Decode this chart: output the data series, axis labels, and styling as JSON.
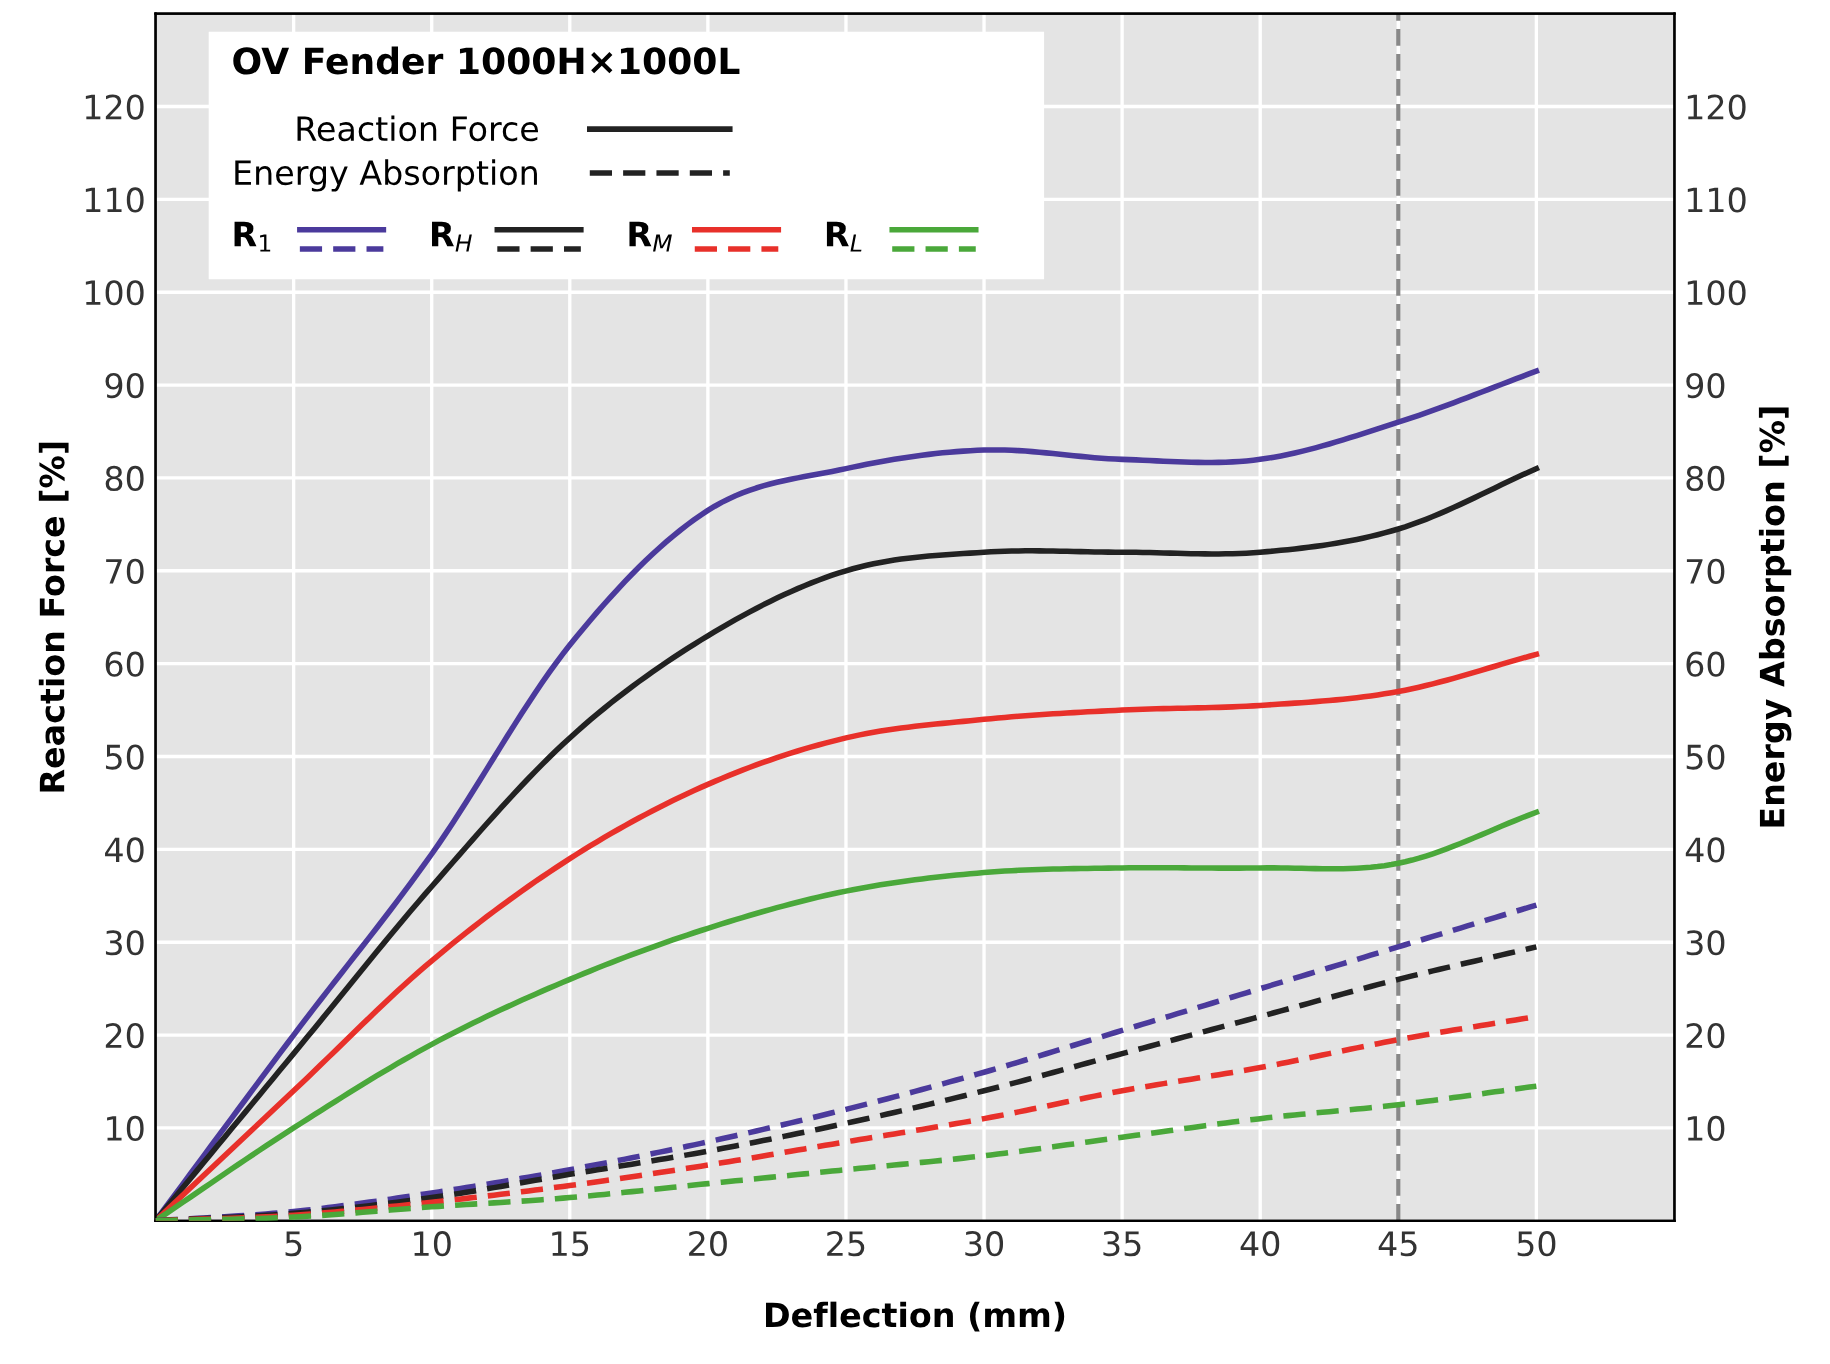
{
  "chart_data": {
    "type": "line",
    "title": "OV Fender 1000H×1000L",
    "xlabel": "Deflection (mm)",
    "ylabel": "Reaction Force [%]",
    "y2label": "Energy Absorption [%]",
    "x": [
      0,
      5,
      10,
      15,
      20,
      25,
      30,
      35,
      40,
      45,
      50
    ],
    "series": [
      {
        "name": "R$_{1}$",
        "color": "#4b3a9c",
        "line_style": "solid",
        "values": [
          0,
          20,
          39.5,
          62,
          76.5,
          81,
          83,
          82,
          82,
          86,
          91.5
        ]
      },
      {
        "color": "#4b3a9c",
        "line_style": "dashed",
        "axis": "y2",
        "values": [
          0,
          1,
          3,
          5.5,
          8.5,
          12,
          16,
          20.5,
          25,
          29.5,
          34
        ]
      },
      {
        "name": "R$_{H}$",
        "color": "#222222",
        "line_style": "solid",
        "values": [
          0,
          18,
          36,
          52,
          63,
          70,
          72,
          72,
          72,
          74.5,
          81
        ]
      },
      {
        "color": "#222222",
        "line_style": "dashed",
        "axis": "y2",
        "values": [
          0,
          0.8,
          2.5,
          5,
          7.5,
          10.5,
          14,
          18,
          22,
          26,
          29.5
        ]
      },
      {
        "name": "R$_{M}$",
        "color": "#e8302a",
        "line_style": "solid",
        "values": [
          0,
          14,
          28,
          39,
          47,
          52,
          54,
          55,
          55.5,
          57,
          61
        ]
      },
      {
        "color": "#e8302a",
        "line_style": "dashed",
        "axis": "y2",
        "values": [
          0,
          0.6,
          2,
          3.8,
          6,
          8.5,
          11,
          14,
          16.5,
          19.5,
          22
        ]
      },
      {
        "name": "R$_{L}$",
        "color": "#4aa83a",
        "line_style": "solid",
        "values": [
          0,
          10,
          19,
          26,
          31.5,
          35.5,
          37.5,
          38,
          38,
          38.5,
          44
        ]
      },
      {
        "color": "#4aa83a",
        "line_style": "dashed",
        "axis": "y2",
        "values": [
          0,
          0.4,
          1.5,
          2.5,
          4,
          5.5,
          7,
          9,
          11,
          12.5,
          14.5
        ]
      }
    ],
    "annotations": [
      "Reaction Force",
      "Energy Absorption"
    ],
    "ref_lines": [
      {
        "axis": "x",
        "value": 45,
        "color": "#888888",
        "line_style": "dashed"
      }
    ],
    "xlim": [
      0,
      55
    ],
    "xticks": [
      5,
      10,
      15,
      20,
      25,
      30,
      35,
      40,
      45,
      50
    ],
    "ylim": [
      0,
      130
    ],
    "yticks": [
      10,
      20,
      30,
      40,
      50,
      60,
      70,
      80,
      90,
      100,
      110,
      120
    ],
    "y2lim": [
      0,
      130
    ],
    "y2ticks": [
      10,
      20,
      30,
      40,
      50,
      60,
      70,
      80,
      90,
      100,
      110,
      120
    ],
    "grid": true,
    "legend": "top left",
    "marker": "none"
  }
}
